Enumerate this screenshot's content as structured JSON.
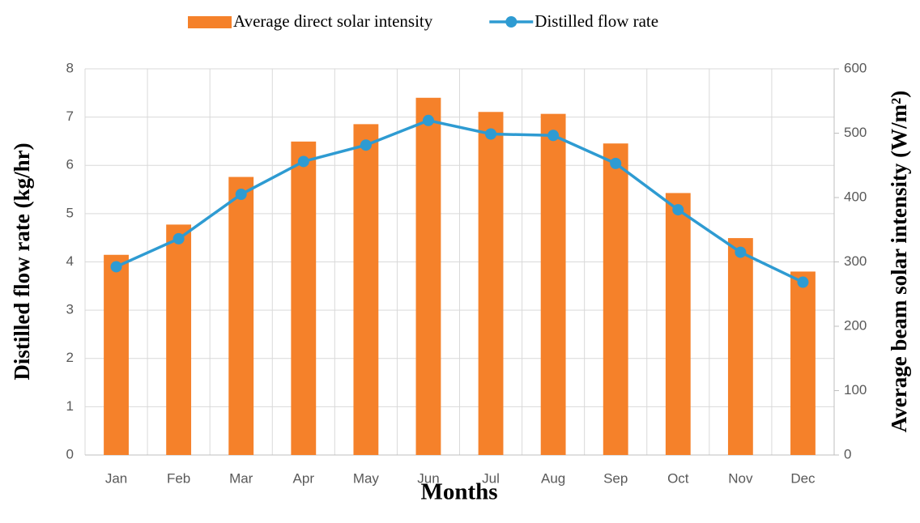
{
  "chart_data": {
    "type": "combo",
    "x_label": "Months",
    "y_label": "Distilled flow rate (kg/hr)",
    "y2_label": "Average beam solar intensity (W/m²)",
    "categories": [
      "Jan",
      "Feb",
      "Mar",
      "Apr",
      "May",
      "Jun",
      "Jul",
      "Aug",
      "Sep",
      "Oct",
      "Nov",
      "Dec"
    ],
    "series": [
      {
        "name": "Average direct solar intensity",
        "type": "bar",
        "axis": "y2",
        "color": "#f5812a",
        "values": [
          311,
          358,
          432,
          487,
          514,
          555,
          533,
          530,
          484,
          407,
          337,
          285
        ]
      },
      {
        "name": "Distilled flow rate",
        "type": "line",
        "axis": "y",
        "color": "#2e9bd2",
        "values": [
          3.9,
          4.48,
          5.4,
          6.08,
          6.42,
          6.93,
          6.65,
          6.62,
          6.04,
          5.08,
          4.2,
          3.58
        ]
      }
    ],
    "ylim": [
      0,
      8
    ],
    "yticks": [
      0,
      1,
      2,
      3,
      4,
      5,
      6,
      7,
      8
    ],
    "y2lim": [
      0,
      600
    ],
    "y2ticks": [
      0,
      100,
      200,
      300,
      400,
      500,
      600
    ],
    "grid": true,
    "legend": "top"
  }
}
